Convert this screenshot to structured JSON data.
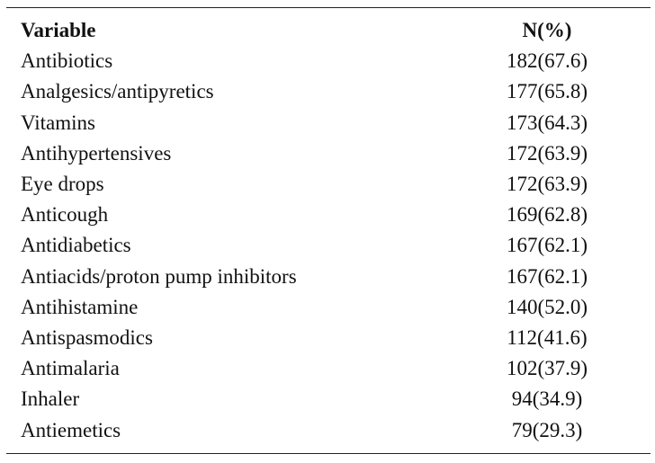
{
  "table": {
    "headers": {
      "variable": "Variable",
      "n": "N(%)"
    },
    "rows": [
      {
        "variable": "Antibiotics",
        "n": "182(67.6)"
      },
      {
        "variable": "Analgesics/antipyretics",
        "n": "177(65.8)"
      },
      {
        "variable": "Vitamins",
        "n": "173(64.3)"
      },
      {
        "variable": "Antihypertensives",
        "n": "172(63.9)"
      },
      {
        "variable": "Eye drops",
        "n": "172(63.9)"
      },
      {
        "variable": "Anticough",
        "n": "169(62.8)"
      },
      {
        "variable": "Antidiabetics",
        "n": "167(62.1)"
      },
      {
        "variable": "Antiacids/proton pump inhibitors",
        "n": "167(62.1)"
      },
      {
        "variable": "Antihistamine",
        "n": "140(52.0)"
      },
      {
        "variable": "Antispasmodics",
        "n": "112(41.6)"
      },
      {
        "variable": "Antimalaria",
        "n": "102(37.9)"
      },
      {
        "variable": "Inhaler",
        "n": "94(34.9)"
      },
      {
        "variable": "Antiemetics",
        "n": "79(29.3)"
      }
    ]
  }
}
